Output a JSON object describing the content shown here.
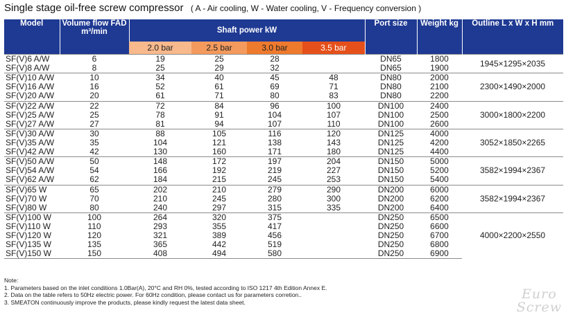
{
  "title": "Single stage oil-free screw compressor",
  "subtitle": "( A - Air cooling, W - Water cooling, V - Frequency conversion )",
  "headers": {
    "model": "Model",
    "flow": "Volume flow FAD m³/min",
    "power": "Shaft power kW",
    "port": "Port size",
    "weight": "Weight kg",
    "outline": "Outline L x W x H mm"
  },
  "pressures": [
    "2.0 bar",
    "2.5 bar",
    "3.0 bar",
    "3.5 bar"
  ],
  "rows": [
    [
      "SF(V)6 A/W",
      "6",
      "19",
      "25",
      "28",
      "",
      "DN65",
      "1800"
    ],
    [
      "SF(V)8 A/W",
      "8",
      "25",
      "29",
      "32",
      "",
      "DN65",
      "1900"
    ],
    [
      "SF(V)10 A/W",
      "10",
      "34",
      "40",
      "45",
      "48",
      "DN80",
      "2000"
    ],
    [
      "SF(V)16 A/W",
      "16",
      "52",
      "61",
      "69",
      "71",
      "DN80",
      "2100"
    ],
    [
      "SF(V)20 A/W",
      "20",
      "61",
      "71",
      "80",
      "83",
      "DN80",
      "2200"
    ],
    [
      "SF(V)22 A/W",
      "22",
      "72",
      "84",
      "96",
      "100",
      "DN100",
      "2400"
    ],
    [
      "SF(V)25 A/W",
      "25",
      "78",
      "91",
      "104",
      "107",
      "DN100",
      "2500"
    ],
    [
      "SF(V)27 A/W",
      "27",
      "81",
      "94",
      "107",
      "110",
      "DN100",
      "2600"
    ],
    [
      "SF(V)30 A/W",
      "30",
      "88",
      "105",
      "116",
      "120",
      "DN125",
      "4000"
    ],
    [
      "SF(V)35 A/W",
      "35",
      "104",
      "121",
      "138",
      "143",
      "DN125",
      "4200"
    ],
    [
      "SF(V)42 A/W",
      "42",
      "130",
      "160",
      "171",
      "180",
      "DN125",
      "4400"
    ],
    [
      "SF(V)50 A/W",
      "50",
      "148",
      "172",
      "197",
      "204",
      "DN150",
      "5000"
    ],
    [
      "SF(V)54 A/W",
      "54",
      "166",
      "192",
      "219",
      "227",
      "DN150",
      "5200"
    ],
    [
      "SF(V)62 A/W",
      "62",
      "184",
      "215",
      "245",
      "253",
      "DN150",
      "5400"
    ],
    [
      "SF(V)65 W",
      "65",
      "202",
      "210",
      "279",
      "290",
      "DN200",
      "6000"
    ],
    [
      "SF(V)70 W",
      "70",
      "210",
      "245",
      "280",
      "300",
      "DN200",
      "6200"
    ],
    [
      "SF(V)80 W",
      "80",
      "240",
      "297",
      "315",
      "335",
      "DN200",
      "6400"
    ],
    [
      "SF(V)100 W",
      "100",
      "264",
      "320",
      "375",
      "",
      "DN250",
      "6500"
    ],
    [
      "SF(V)110 W",
      "110",
      "293",
      "355",
      "417",
      "",
      "DN250",
      "6600"
    ],
    [
      "SF(V)120 W",
      "120",
      "321",
      "389",
      "456",
      "",
      "DN250",
      "6700"
    ],
    [
      "SF(V)135 W",
      "135",
      "365",
      "442",
      "519",
      "",
      "DN250",
      "6800"
    ],
    [
      "SF(V)150 W",
      "150",
      "408",
      "494",
      "580",
      "",
      "DN250",
      "6900"
    ]
  ],
  "outline_groups": [
    {
      "start": 0,
      "span": 2,
      "text": "1945×1295×2035"
    },
    {
      "start": 2,
      "span": 3,
      "text": "2300×1490×2000"
    },
    {
      "start": 5,
      "span": 3,
      "text": "3000×1800×2200"
    },
    {
      "start": 8,
      "span": 3,
      "text": "3052×1850×2265"
    },
    {
      "start": 11,
      "span": 3,
      "text": "3582×1994×2367"
    },
    {
      "start": 14,
      "span": 3,
      "text": "3582×1994×2367"
    },
    {
      "start": 17,
      "span": 5,
      "text": "4000×2200×2550"
    }
  ],
  "notes": [
    "Note:",
    "1. Parameters based on the inlet conditions 1.0Bar(A), 20°C and RH 0%, tested according to ISO 1217 4th Edition Annex E.",
    "2. Data on the table refers to 50Hz electric power.  For 60Hz condition, please contact us for parameters corretion..",
    "3. SMEATON continuously improve the products, please kindly request the latest data sheet."
  ],
  "watermark": [
    "Euro",
    "Screw"
  ],
  "colors": {
    "header_blue": "#1f3a93",
    "pressure_2_0": "#f8b98c",
    "pressure_2_5": "#f49a5d",
    "pressure_3_0": "#ee7a2d",
    "pressure_3_5": "#e5501a"
  }
}
